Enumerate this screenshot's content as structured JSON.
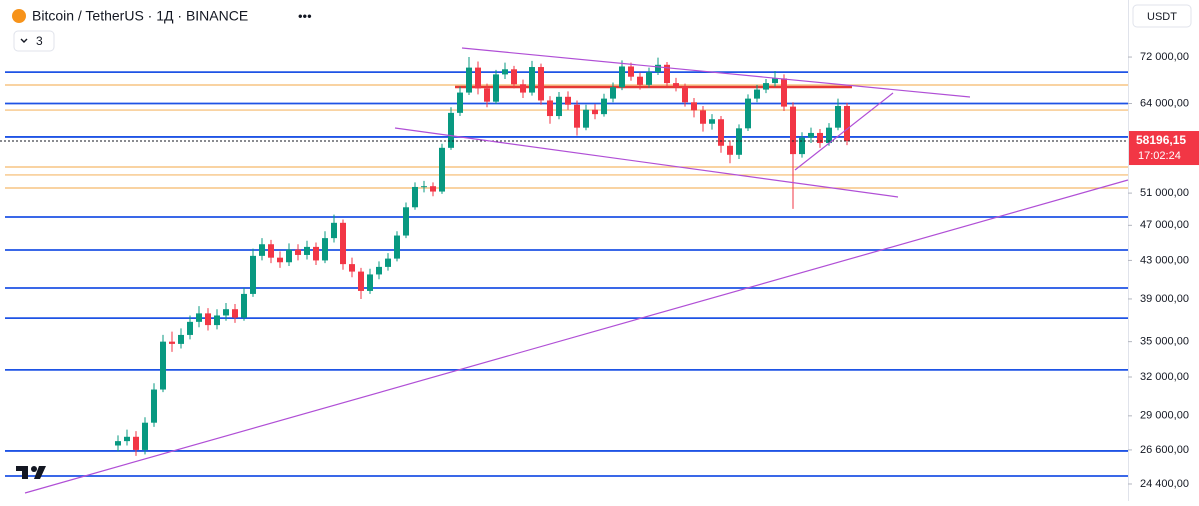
{
  "chart_data": {
    "type": "candlestick",
    "title": "Bitcoin / TetherUS · 1Д · BINANCE",
    "indicator_count": 3,
    "currency": "USDT",
    "log_scale": true,
    "up_color": "#089981",
    "down_color": "#f23645",
    "ylim": [
      23370,
      83200
    ],
    "yticks": [
      {
        "value": 72000,
        "label": "72 000,00"
      },
      {
        "value": 64000,
        "label": "64 000,00"
      },
      {
        "value": 51000,
        "label": "51 000,00"
      },
      {
        "value": 47000,
        "label": "47 000,00"
      },
      {
        "value": 43000,
        "label": "43 000,00"
      },
      {
        "value": 39000,
        "label": "39 000,00"
      },
      {
        "value": 35000,
        "label": "35 000,00"
      },
      {
        "value": 32000,
        "label": "32 000,00"
      },
      {
        "value": 29000,
        "label": "29 000,00"
      },
      {
        "value": 26600,
        "label": "26 600,00"
      },
      {
        "value": 24400,
        "label": "24 400,00"
      }
    ],
    "last_price": {
      "value": 58196.15,
      "label": "58196,15"
    },
    "countdown": "17:02:24",
    "levels": [
      {
        "value": 69300,
        "color": "#1e53e5"
      },
      {
        "value": 64000,
        "color": "#1e53e5"
      },
      {
        "value": 58800,
        "color": "#1e53e5"
      },
      {
        "value": 48000,
        "color": "#1e53e5"
      },
      {
        "value": 44150,
        "color": "#1e53e5"
      },
      {
        "value": 40100,
        "color": "#1e53e5"
      },
      {
        "value": 37150,
        "color": "#1e53e5"
      },
      {
        "value": 32580,
        "color": "#1e53e5"
      },
      {
        "value": 26530,
        "color": "#1e53e5"
      },
      {
        "value": 24900,
        "color": "#1e53e5"
      },
      {
        "value": 67070,
        "color": "#f5b96b"
      },
      {
        "value": 62950,
        "color": "#f5b96b"
      },
      {
        "value": 54490,
        "color": "#f5b96b"
      },
      {
        "value": 53400,
        "color": "#f5b96b"
      },
      {
        "value": 51660,
        "color": "#f5b96b"
      },
      {
        "value": 66740,
        "color": "#e53935"
      }
    ],
    "open": [
      26900,
      27200,
      27500,
      26600,
      28500,
      31000,
      35000,
      34800,
      35600,
      36800,
      37600,
      36500,
      37400,
      38000,
      37200,
      39500,
      43500,
      44800,
      43300,
      42800,
      44200,
      43600,
      44500,
      43000,
      45500,
      47300,
      42600,
      41800,
      39800,
      41500,
      42300,
      43200,
      45800,
      49200,
      51800,
      51900,
      51200,
      57200,
      62500,
      65800,
      70100,
      66500,
      64300,
      68900,
      69800,
      67200,
      65800,
      70200,
      64500,
      62000,
      65100,
      63800,
      60200,
      63000,
      62300,
      64800,
      66700,
      70300,
      68500,
      67100,
      69300,
      70600,
      67400,
      66800,
      64200,
      62900,
      60800,
      61500,
      57500,
      56200,
      60100,
      64800,
      66300,
      67400,
      68200,
      63500,
      56300,
      58700,
      59400,
      57900,
      60200,
      63600
    ],
    "high": [
      27600,
      28000,
      27900,
      28900,
      31500,
      35600,
      35900,
      36200,
      37400,
      38300,
      38100,
      38000,
      38600,
      38500,
      40100,
      44300,
      45500,
      45300,
      44000,
      44900,
      44800,
      45200,
      45000,
      46300,
      48300,
      47700,
      43300,
      42200,
      42100,
      42900,
      43800,
      46300,
      49800,
      52400,
      52600,
      52400,
      57800,
      63400,
      66800,
      72000,
      71200,
      67300,
      69700,
      71000,
      70400,
      68000,
      71300,
      70800,
      65200,
      65900,
      66000,
      64500,
      63800,
      63900,
      65600,
      67500,
      71400,
      71000,
      69200,
      70100,
      71900,
      71100,
      68300,
      67300,
      64900,
      63600,
      62300,
      62000,
      58300,
      60700,
      65500,
      67100,
      68100,
      69500,
      68900,
      64200,
      59500,
      60200,
      60000,
      60900,
      64800,
      64100
    ],
    "low": [
      26500,
      26900,
      26200,
      26300,
      28200,
      30800,
      34100,
      34400,
      35200,
      36300,
      36000,
      36100,
      36900,
      36700,
      36900,
      39200,
      43000,
      42700,
      42200,
      42400,
      43000,
      43100,
      42500,
      42700,
      45000,
      42000,
      41200,
      39000,
      39500,
      41000,
      41900,
      42900,
      45500,
      48900,
      51100,
      50600,
      50900,
      56900,
      62000,
      65400,
      65500,
      63400,
      63900,
      68100,
      66500,
      64900,
      65300,
      63800,
      60800,
      61500,
      63000,
      59000,
      59800,
      61500,
      61900,
      64200,
      66200,
      67800,
      66300,
      66600,
      68800,
      66800,
      66000,
      63500,
      61800,
      59600,
      59900,
      56500,
      55000,
      55600,
      59700,
      64200,
      65700,
      66800,
      62800,
      49000,
      55800,
      57900,
      57200,
      57500,
      59800,
      57600
    ],
    "close": [
      27200,
      27500,
      26600,
      28500,
      31000,
      35000,
      34800,
      35600,
      36800,
      37600,
      36500,
      37400,
      38000,
      37200,
      39500,
      43500,
      44800,
      43300,
      42800,
      44200,
      43600,
      44500,
      43000,
      45500,
      47300,
      42600,
      41800,
      39800,
      41500,
      42300,
      43200,
      45800,
      49200,
      51800,
      51900,
      51200,
      57200,
      62500,
      65800,
      70100,
      66500,
      64300,
      68900,
      69800,
      67200,
      65800,
      70200,
      64500,
      62000,
      65100,
      63800,
      60200,
      63000,
      62300,
      64800,
      66700,
      70300,
      68500,
      67100,
      69300,
      70600,
      67400,
      66800,
      64200,
      62900,
      60800,
      61500,
      57500,
      56200,
      60100,
      64800,
      66300,
      67400,
      68200,
      63500,
      56300,
      58700,
      59400,
      57900,
      60200,
      63600,
      58196.15
    ]
  }
}
